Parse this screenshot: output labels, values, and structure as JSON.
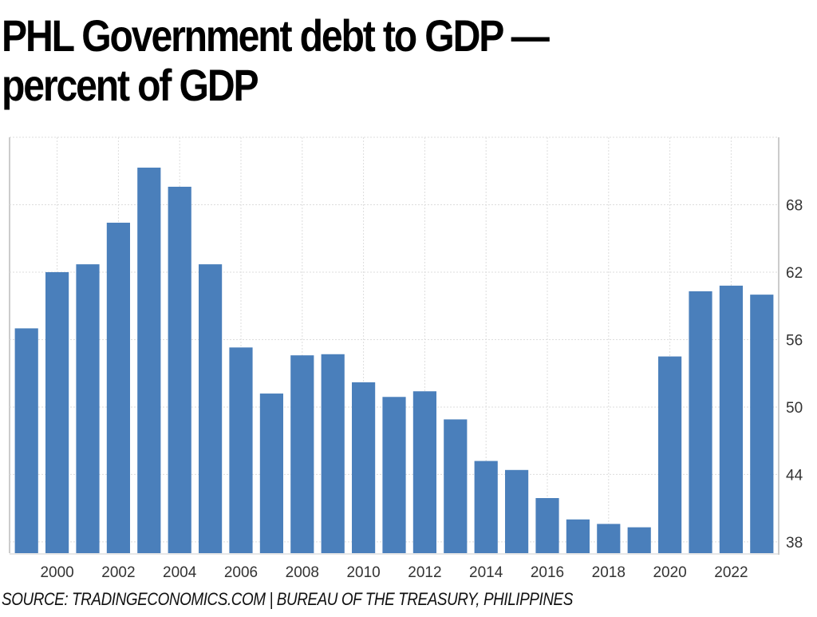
{
  "title_lines": [
    "PHL Government debt to GDP —",
    "percent of GDP"
  ],
  "source": "SOURCE: TRADINGECONOMICS.COM | BUREAU OF THE TREASURY, PHILIPPINES",
  "colors": {
    "bar": "#4a7fbb",
    "grid": "#dddddd",
    "axis": "#cccccc"
  },
  "chart_data": {
    "type": "bar",
    "title": "PHL Government debt to GDP — percent of GDP",
    "xlabel": "",
    "ylabel": "",
    "categories": [
      1999,
      2000,
      2001,
      2002,
      2003,
      2004,
      2005,
      2006,
      2007,
      2008,
      2009,
      2010,
      2011,
      2012,
      2013,
      2014,
      2015,
      2016,
      2017,
      2018,
      2019,
      2020,
      2021,
      2022,
      2023
    ],
    "values": [
      57.0,
      62.0,
      62.7,
      66.4,
      71.3,
      69.6,
      62.7,
      55.3,
      51.2,
      54.6,
      54.7,
      52.2,
      50.9,
      51.4,
      48.9,
      45.2,
      44.4,
      41.9,
      40.0,
      39.6,
      39.3,
      54.5,
      60.3,
      60.8,
      60.0
    ],
    "ylim": [
      37,
      74
    ],
    "yticks": [
      38,
      44,
      50,
      56,
      62,
      68
    ],
    "xtick_labels": [
      "2000",
      "2002",
      "2004",
      "2006",
      "2008",
      "2010",
      "2012",
      "2014",
      "2016",
      "2018",
      "2020",
      "2022"
    ],
    "y_axis_position": "right",
    "grid": true,
    "legend": "none"
  }
}
